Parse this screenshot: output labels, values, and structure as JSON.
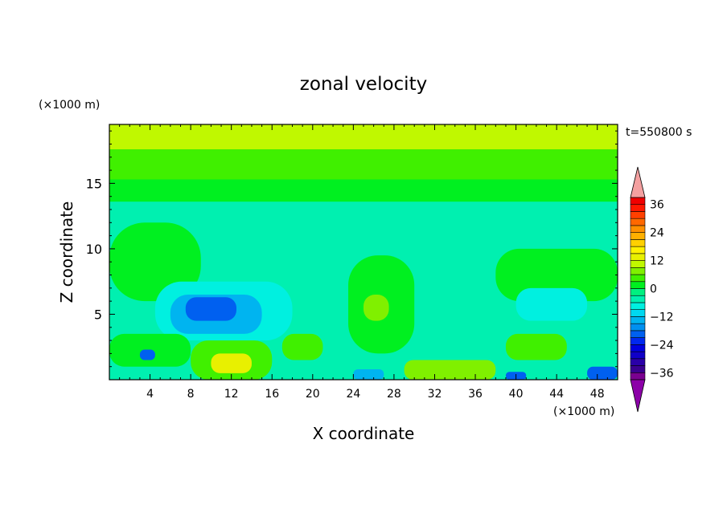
{
  "chart_data": {
    "type": "heatmap",
    "title": "zonal velocity",
    "xlabel": "X coordinate",
    "ylabel": "Z coordinate",
    "x_unit_label": "(×1000 m)",
    "y_unit_label": "(×1000 m)",
    "time_label": "t=550800 s",
    "xlim": [
      0,
      50
    ],
    "ylim": [
      0,
      19.5
    ],
    "x_ticks": [
      4,
      8,
      12,
      16,
      20,
      24,
      28,
      32,
      36,
      40,
      44,
      48
    ],
    "y_ticks": [
      5,
      10,
      15
    ],
    "colorbar": {
      "levels": [
        -39,
        -36,
        -33,
        -30,
        -27,
        -24,
        -21,
        -18,
        -15,
        -12,
        -9,
        -6,
        -3,
        0,
        3,
        6,
        9,
        12,
        15,
        18,
        21,
        24,
        27,
        30,
        33,
        36,
        39
      ],
      "colors": [
        "#7a0090",
        "#3a0090",
        "#2a00a8",
        "#1000c8",
        "#0000e0",
        "#0028f0",
        "#0060f0",
        "#0090f0",
        "#00b4f0",
        "#00d8f0",
        "#00f0e0",
        "#00f0b0",
        "#00f080",
        "#00f020",
        "#40f000",
        "#80f000",
        "#c0f800",
        "#e8f000",
        "#fff000",
        "#ffd000",
        "#ffb000",
        "#ff9000",
        "#ff6800",
        "#ff4000",
        "#ff1800",
        "#f00000"
      ],
      "under_color": "#8c00a8",
      "over_color": "#f4a0a0",
      "tick_labels": [
        {
          "value": 36,
          "label": "36"
        },
        {
          "value": 24,
          "label": "24"
        },
        {
          "value": 12,
          "label": "12"
        },
        {
          "value": 0,
          "label": "0"
        },
        {
          "value": -12,
          "label": "−12"
        },
        {
          "value": -24,
          "label": "−24"
        },
        {
          "value": -36,
          "label": "−36"
        }
      ]
    },
    "regions": [
      {
        "x": [
          0,
          50
        ],
        "z": [
          17.5,
          19.5
        ],
        "u": 10
      },
      {
        "x": [
          0,
          50
        ],
        "z": [
          15.2,
          17.6
        ],
        "u": 5
      },
      {
        "x": [
          0,
          50
        ],
        "z": [
          13.5,
          15.3
        ],
        "u": 1
      },
      {
        "x": [
          0,
          50
        ],
        "z": [
          0,
          13.6
        ],
        "u": -4
      },
      {
        "x": [
          0,
          9
        ],
        "z": [
          6,
          12
        ],
        "u": 1
      },
      {
        "x": [
          38,
          50
        ],
        "z": [
          6,
          10
        ],
        "u": 1
      },
      {
        "x": [
          23.5,
          30
        ],
        "z": [
          2,
          9.5
        ],
        "u": 1
      },
      {
        "x": [
          4.5,
          18
        ],
        "z": [
          3,
          7.5
        ],
        "u": -8
      },
      {
        "x": [
          6,
          15
        ],
        "z": [
          3.5,
          6.5
        ],
        "u": -13
      },
      {
        "x": [
          7.5,
          12.5
        ],
        "z": [
          4.5,
          6.3
        ],
        "u": -19
      },
      {
        "x": [
          40,
          47
        ],
        "z": [
          4.5,
          7
        ],
        "u": -8
      },
      {
        "x": [
          0,
          8
        ],
        "z": [
          1,
          3.5
        ],
        "u": 2
      },
      {
        "x": [
          8,
          16
        ],
        "z": [
          0,
          3
        ],
        "u": 4
      },
      {
        "x": [
          10,
          14
        ],
        "z": [
          0.5,
          2
        ],
        "u": 12
      },
      {
        "x": [
          17,
          21
        ],
        "z": [
          1.5,
          3.5
        ],
        "u": 5
      },
      {
        "x": [
          29,
          38
        ],
        "z": [
          0,
          1.5
        ],
        "u": 8
      },
      {
        "x": [
          39,
          45
        ],
        "z": [
          1.5,
          3.5
        ],
        "u": 5
      },
      {
        "x": [
          47,
          50
        ],
        "z": [
          0,
          1
        ],
        "u": -20
      },
      {
        "x": [
          39,
          41
        ],
        "z": [
          0,
          0.6
        ],
        "u": -20
      },
      {
        "x": [
          24,
          27
        ],
        "z": [
          0,
          0.8
        ],
        "u": -14
      },
      {
        "x": [
          3,
          4.5
        ],
        "z": [
          1.5,
          2.3
        ],
        "u": -20
      },
      {
        "x": [
          25,
          27.5
        ],
        "z": [
          4.5,
          6.5
        ],
        "u": 7
      }
    ]
  }
}
